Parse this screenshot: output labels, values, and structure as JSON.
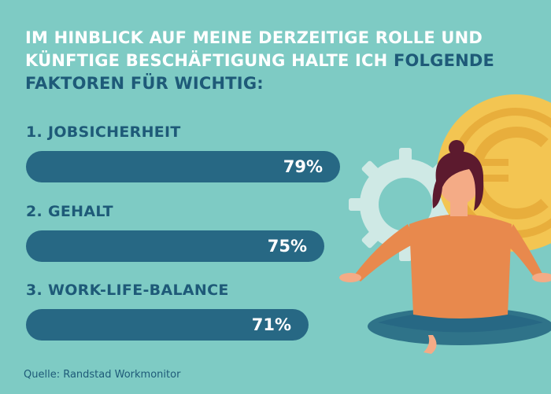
{
  "title": {
    "part1": "IM HINBLICK AUF MEINE DERZEITIGE ROLLE UND KÜNFTIGE BESCHÄFTIGUNG HALTE ICH ",
    "part2": "FOLGENDE FAKTOREN FÜR WICHTIG:"
  },
  "source": "Quelle: Randstad Workmonitor",
  "chart_data": {
    "type": "bar",
    "categories": [
      "1. JOBSICHERHEIT",
      "2. GEHALT",
      "3. WORK-LIFE-BALANCE"
    ],
    "values": [
      79,
      75,
      71
    ],
    "value_labels": [
      "79%",
      "75%",
      "71%"
    ],
    "unit": "%",
    "orientation": "horizontal",
    "xlim": [
      0,
      100
    ],
    "colors": {
      "bar": "#276884",
      "background": "#7ecbc4",
      "highlight_text": "#1e5a78",
      "coin": "#f3c552",
      "person_top": "#e8894d"
    }
  },
  "illustration": {
    "icons": [
      "gear-icon",
      "euro-coin-icon",
      "meditating-person-icon"
    ]
  }
}
